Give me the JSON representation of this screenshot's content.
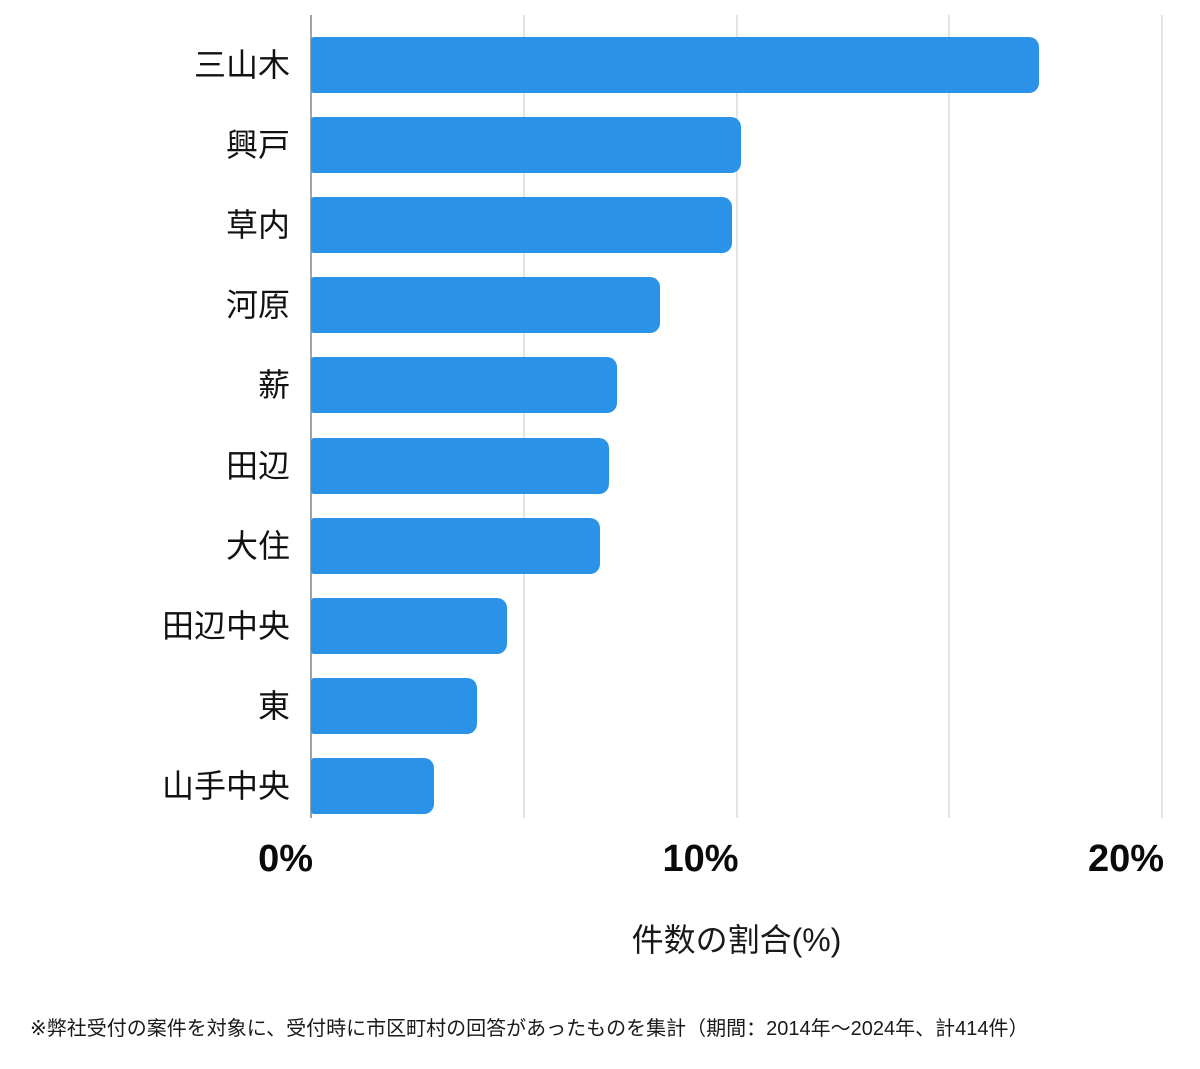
{
  "chart_data": {
    "type": "bar",
    "orientation": "horizontal",
    "categories": [
      "三山木",
      "興戸",
      "草内",
      "河原",
      "薪",
      "田辺",
      "大住",
      "田辺中央",
      "東",
      "山手中央"
    ],
    "values": [
      17.1,
      10.1,
      9.9,
      8.2,
      7.2,
      7.0,
      6.8,
      4.6,
      3.9,
      2.9
    ],
    "title": "",
    "xlabel": "件数の割合(%)",
    "ylabel": "",
    "xlim": [
      0,
      20
    ],
    "gridlines": [
      0,
      5,
      10,
      15,
      20
    ],
    "grid": "on",
    "legend": "none",
    "ticks": [
      {
        "value": 0,
        "label": "0%"
      },
      {
        "value": 10,
        "label": "10%"
      },
      {
        "value": 20,
        "label": "20%"
      }
    ],
    "bar_color": "#2a93e8",
    "zero_axis_color": "#a3a3a3",
    "gridline_color": "#e4e4e4"
  },
  "footnote": "※弊社受付の案件を対象に、受付時に市区町村の回答があったものを集計（期間：2014年～2024年、計414件）"
}
